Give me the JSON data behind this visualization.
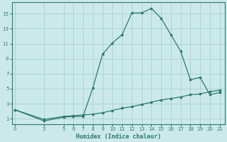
{
  "xlabel": "Humidex (Indice chaleur)",
  "ylabel": "",
  "background_color": "#cce9e9",
  "grid_color": "#aad4d4",
  "line_color": "#2a7a6f",
  "x_ticks": [
    0,
    3,
    5,
    6,
    7,
    8,
    9,
    10,
    11,
    12,
    13,
    14,
    15,
    16,
    17,
    18,
    19,
    20,
    21
  ],
  "y_ticks": [
    1,
    3,
    5,
    7,
    9,
    11,
    13,
    15
  ],
  "xlim": [
    -0.3,
    21.5
  ],
  "ylim": [
    0.3,
    16.5
  ],
  "curve1_x": [
    0,
    3,
    5,
    6,
    7,
    8,
    9,
    10,
    11,
    12,
    13,
    14,
    15,
    16,
    17,
    18,
    19,
    20,
    21
  ],
  "curve1_y": [
    2.2,
    0.7,
    1.2,
    1.3,
    1.3,
    5.1,
    9.6,
    11.1,
    12.2,
    15.1,
    15.1,
    15.7,
    14.4,
    12.2,
    10.0,
    6.2,
    6.5,
    4.2,
    4.5
  ],
  "curve2_x": [
    0,
    3,
    5,
    6,
    7,
    8,
    9,
    10,
    11,
    12,
    13,
    14,
    15,
    16,
    17,
    18,
    19,
    20,
    21
  ],
  "curve2_y": [
    2.2,
    0.9,
    1.3,
    1.4,
    1.5,
    1.6,
    1.8,
    2.1,
    2.4,
    2.6,
    2.9,
    3.2,
    3.5,
    3.7,
    3.9,
    4.2,
    4.3,
    4.6,
    4.8
  ]
}
